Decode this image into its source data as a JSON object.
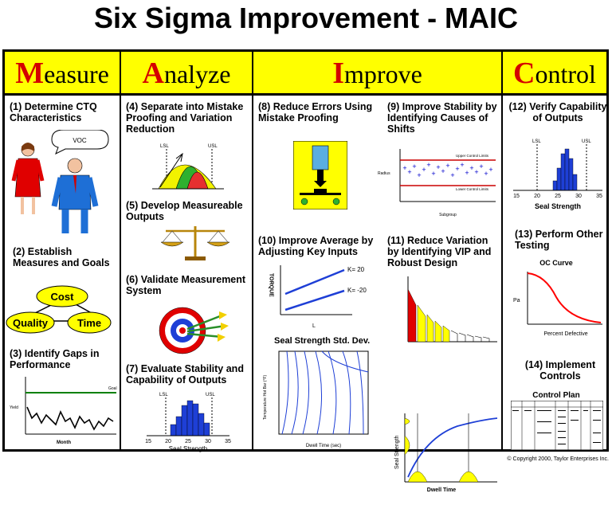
{
  "title": "Six Sigma Improvement - MAIC",
  "phases": [
    {
      "initial": "M",
      "rest": "easure"
    },
    {
      "initial": "A",
      "rest": "nalyze"
    },
    {
      "initial": "I",
      "rest": "mprove"
    },
    {
      "initial": "C",
      "rest": "ontrol"
    }
  ],
  "steps": {
    "s1": "(1) Determine CTQ Characteristics",
    "s2": "(2) Establish Measures and Goals",
    "s3": "(3) Identify Gaps in Performance",
    "s4": "(4) Separate into Mistake Proofing and Variation Reduction",
    "s5": "(5) Develop Measureable Outputs",
    "s6": "(6) Validate Measurement System",
    "s7": "(7) Evaluate Stability and Capability of Outputs",
    "s8": "(8) Reduce Errors Using Mistake Proofing",
    "s9": "(9) Improve Stability by Identifying Causes of Shifts",
    "s10": "(10) Improve Average by Adjusting Key Inputs",
    "s11": "(11) Reduce Variation by Identifying VIP and Robust Design",
    "s12": "(12) Verify Capability of Outputs",
    "s13": "(13) Perform Other Testing",
    "s14": "(14) Implement Controls"
  },
  "labels": {
    "voc": "VOC",
    "cost": "Cost",
    "quality": "Quality",
    "time": "Time",
    "goal": "Goal",
    "yield": "Yield",
    "month": "Month",
    "lsl": "LSL",
    "usl": "USL",
    "seal_strength": "Seal Strength",
    "upper_control": "Upper Control Limits",
    "lower_control": "Lower Control Limits",
    "radius": "Radius",
    "subgroup": "Subgroup",
    "k_pos": "K= 20",
    "k_neg": "K= -20",
    "torque": "TORQUE",
    "l_axis": "L",
    "std_dev_title": "Seal Strength Std. Dev.",
    "temp_axis": "Temperature Hot Bar (°F)",
    "dwell_sec": "Dwell Time (sec)",
    "dwell_time": "Dwell Time",
    "oc_curve": "OC Curve",
    "pa": "Pa",
    "percent_defective": "Percent Defective",
    "control_plan": "Control Plan",
    "copyright": "© Copyright 2000, Taylor Enterprises Inc."
  },
  "ticks": {
    "cap7": [
      "15",
      "20",
      "25",
      "30",
      "35"
    ],
    "cap12": [
      "15",
      "20",
      "25",
      "30",
      "35"
    ]
  },
  "chart_data": [
    {
      "type": "histogram",
      "title": "Seal Strength",
      "x_ticks": [
        15,
        20,
        25,
        30,
        35
      ],
      "spec_limits": {
        "LSL": 20,
        "USL": 32
      }
    },
    {
      "type": "histogram",
      "title": "Seal Strength",
      "x_ticks": [
        15,
        20,
        25,
        30,
        35
      ],
      "spec_limits": {
        "LSL": 20,
        "USL": 33
      }
    }
  ],
  "colors": {
    "header_bg": "#ffff00",
    "initial": "#d40000",
    "oval": "#ffff00",
    "goal_line": "#008000",
    "control_limit": "#cc0000",
    "points": "#0000cc",
    "oc_line": "#ff0000",
    "histogram": "#1e3fd6"
  }
}
